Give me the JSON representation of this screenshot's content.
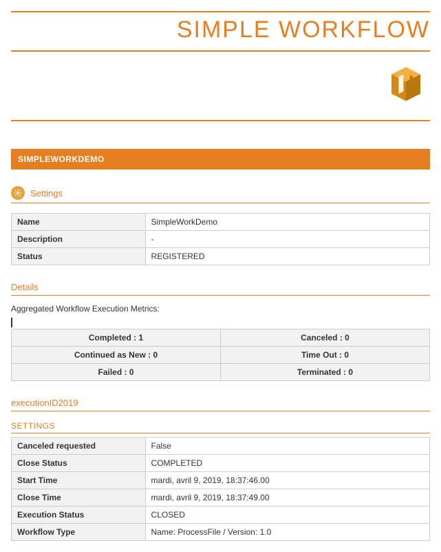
{
  "colors": {
    "accent": "#e67e22",
    "logo_primary": "#d68910",
    "logo_secondary": "#b9770e",
    "table_border": "#cccccc",
    "table_header_bg": "#f2f2f2",
    "background": "#ffffff"
  },
  "header": {
    "title": "SIMPLE WORKFLOW"
  },
  "section_bar": "SIMPLEWORKDEMO",
  "settings": {
    "heading": "Settings",
    "rows": [
      {
        "label": "Name",
        "value": "SimpleWorkDemo"
      },
      {
        "label": "Description",
        "value": "-"
      },
      {
        "label": "Status",
        "value": "REGISTERED"
      }
    ]
  },
  "details": {
    "heading": "Details",
    "subtext": "Aggregated Workflow Execution Metrics:",
    "metrics": [
      {
        "left": "Completed : 1",
        "right": "Canceled : 0"
      },
      {
        "left": "Continued as New : 0",
        "right": "Time Out : 0"
      },
      {
        "left": "Failed : 0",
        "right": "Terminated : 0"
      }
    ]
  },
  "execution": {
    "heading": "executionID2019",
    "settings_label": "SETTINGS",
    "rows": [
      {
        "label": "Canceled requested",
        "value": "False"
      },
      {
        "label": "Close Status",
        "value": "COMPLETED"
      },
      {
        "label": "Start Time",
        "value": "mardi, avril 9, 2019, 18:37:46.00"
      },
      {
        "label": "Close Time",
        "value": "mardi, avril 9, 2019, 18:37:49.00"
      },
      {
        "label": "Execution Status",
        "value": "CLOSED"
      },
      {
        "label": "Workflow Type",
        "value": "Name: ProcessFile / Version: 1.0"
      }
    ]
  }
}
